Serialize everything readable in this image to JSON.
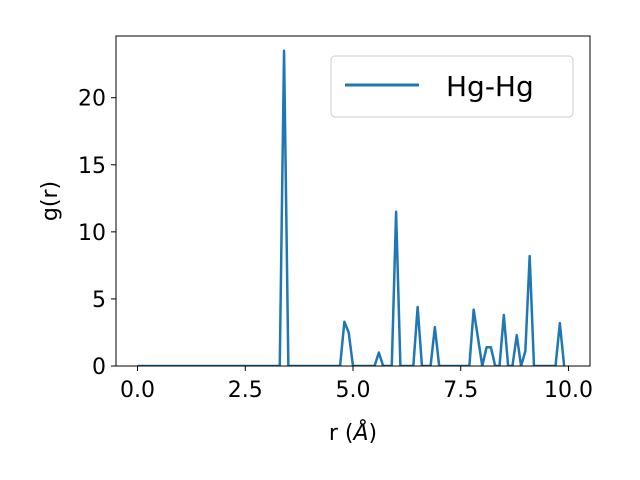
{
  "chart_data": {
    "type": "line",
    "xlabel_prefix": "r (",
    "xlabel_unit": "Å",
    "xlabel_suffix": ")",
    "ylabel": "g(r)",
    "xlim": [
      -0.5,
      10.5
    ],
    "ylim": [
      0,
      24.6
    ],
    "xticks": [
      0.0,
      2.5,
      5.0,
      7.5,
      10.0
    ],
    "xtick_labels": [
      "0.0",
      "2.5",
      "5.0",
      "7.5",
      "10.0"
    ],
    "yticks": [
      0,
      5,
      10,
      15,
      20
    ],
    "ytick_labels": [
      "0",
      "5",
      "10",
      "15",
      "20"
    ],
    "grid": false,
    "legend_position": "top-right",
    "series": [
      {
        "name": "Hg-Hg",
        "color": "#1f77b4",
        "x": [
          0.0,
          3.3,
          3.4,
          3.5,
          4.7,
          4.8,
          4.9,
          5.0,
          5.5,
          5.6,
          5.7,
          5.9,
          6.0,
          6.1,
          6.4,
          6.5,
          6.6,
          6.8,
          6.9,
          7.0,
          7.7,
          7.8,
          8.0,
          8.1,
          8.2,
          8.3,
          8.4,
          8.5,
          8.6,
          8.7,
          8.8,
          8.9,
          9.0,
          9.1,
          9.2,
          9.3,
          9.7,
          9.8,
          9.9
        ],
        "values": [
          0,
          0,
          23.5,
          0,
          0,
          3.3,
          2.5,
          0,
          0,
          1.0,
          0,
          0,
          11.5,
          0,
          0,
          4.4,
          0,
          0,
          2.9,
          0,
          0,
          4.2,
          0,
          1.4,
          1.4,
          0,
          0,
          3.8,
          0,
          0,
          2.3,
          0,
          1.1,
          8.2,
          0,
          0,
          0,
          3.2,
          0
        ]
      }
    ]
  }
}
